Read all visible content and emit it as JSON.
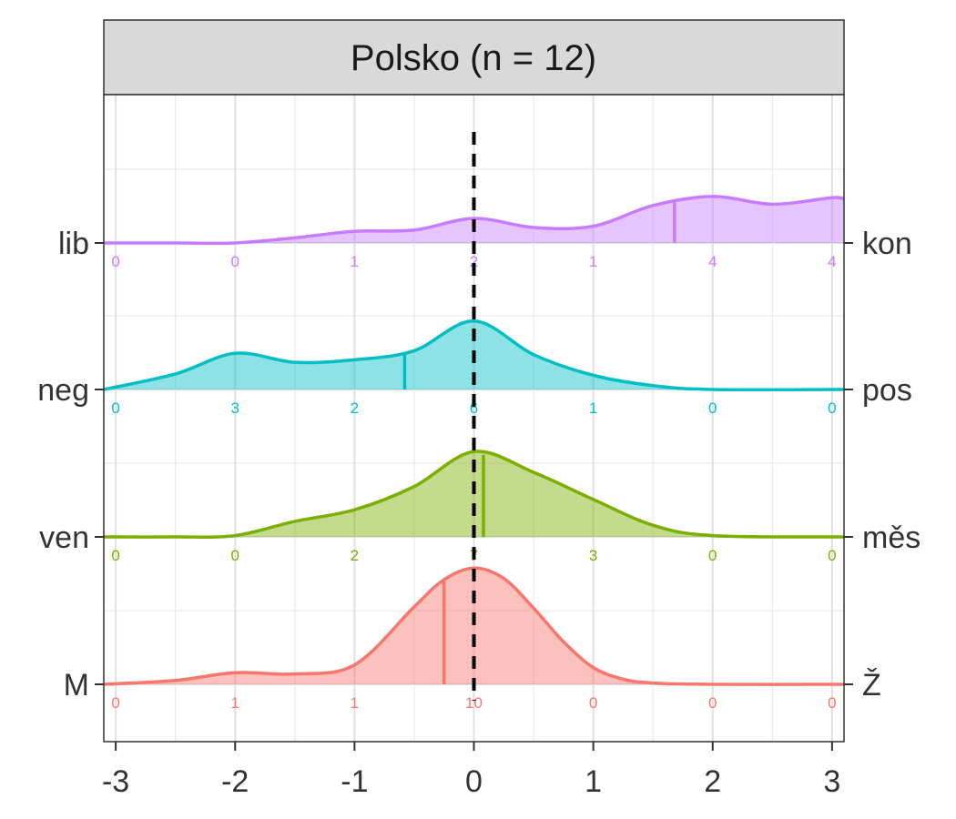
{
  "chart_data": {
    "type": "ridgeline",
    "facet_title": "Polsko (n = 12)",
    "xlim": [
      -3.1,
      3.1
    ],
    "x_ticks": [
      "-3",
      "-2",
      "-1",
      "0",
      "1",
      "2",
      "3"
    ],
    "x_tick_values": [
      -3,
      -2,
      -1,
      0,
      1,
      2,
      3
    ],
    "reference_line_x": 0,
    "grid": true,
    "series": [
      {
        "left_label": "M",
        "right_label": "Ž",
        "color": "#f8766d",
        "mean": -0.25,
        "count_x": [
          -3,
          -2,
          -1,
          0,
          1,
          2,
          3
        ],
        "counts": [
          "0",
          "1",
          "1",
          "10",
          "0",
          "0",
          "0"
        ],
        "density_x": [
          -3.1,
          -2.5,
          -2,
          -1.5,
          -1,
          -0.5,
          -0.25,
          0,
          0.25,
          0.5,
          0.75,
          1,
          1.25,
          1.5,
          2,
          3.1
        ],
        "density_y": [
          0.0,
          0.03,
          0.09,
          0.08,
          0.15,
          0.6,
          0.81,
          0.9,
          0.82,
          0.59,
          0.33,
          0.13,
          0.04,
          0.01,
          0.0,
          0.0
        ]
      },
      {
        "left_label": "ven",
        "right_label": "měs",
        "color": "#7cae00",
        "mean": 0.08,
        "count_x": [
          -3,
          -2,
          -1,
          0,
          1,
          2,
          3
        ],
        "counts": [
          "0",
          "0",
          "2",
          "7",
          "3",
          "0",
          "0"
        ],
        "density_x": [
          -3.1,
          -2.5,
          -2,
          -1.5,
          -1,
          -0.5,
          0,
          0.5,
          1,
          1.5,
          2,
          3.1
        ],
        "density_y": [
          0.0,
          0.0,
          0.01,
          0.12,
          0.21,
          0.39,
          0.66,
          0.5,
          0.29,
          0.09,
          0.01,
          0.0
        ]
      },
      {
        "left_label": "neg",
        "right_label": "pos",
        "color": "#00bfc4",
        "mean": -0.58,
        "count_x": [
          -3,
          -2,
          -1,
          0,
          1,
          2,
          3
        ],
        "counts": [
          "0",
          "3",
          "2",
          "6",
          "1",
          "0",
          "0"
        ],
        "density_x": [
          -3.1,
          -2.5,
          -2,
          -1.5,
          -1,
          -0.5,
          0,
          0.5,
          1,
          1.5,
          2,
          3.1
        ],
        "density_y": [
          0.0,
          0.12,
          0.28,
          0.21,
          0.23,
          0.3,
          0.53,
          0.27,
          0.11,
          0.03,
          0.0,
          0.0
        ]
      },
      {
        "left_label": "lib",
        "right_label": "kon",
        "color": "#c77cff",
        "mean": 1.68,
        "count_x": [
          -3,
          -2,
          -1,
          0,
          1,
          2,
          3
        ],
        "counts": [
          "0",
          "0",
          "1",
          "2",
          "1",
          "4",
          "4"
        ],
        "density_x": [
          -3.1,
          -2.5,
          -2,
          -1.5,
          -1,
          -0.5,
          0,
          0.5,
          1,
          1.5,
          2,
          2.5,
          3,
          3.1
        ],
        "density_y": [
          0.0,
          0.0,
          0.0,
          0.04,
          0.09,
          0.1,
          0.19,
          0.12,
          0.13,
          0.29,
          0.36,
          0.3,
          0.35,
          0.34
        ]
      }
    ]
  }
}
